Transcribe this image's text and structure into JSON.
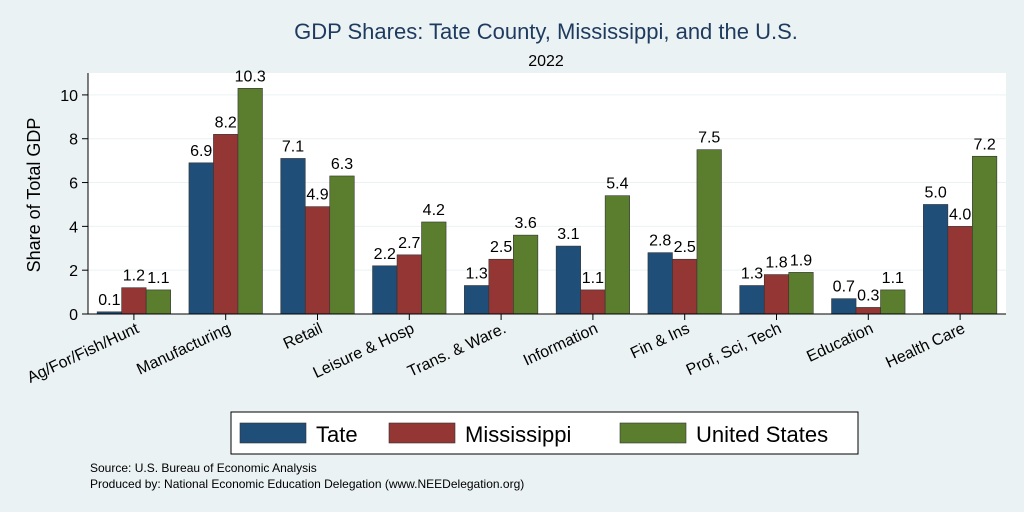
{
  "chart_data": {
    "type": "bar",
    "title": "GDP Shares: Tate County, Mississippi, and the U.S.",
    "subtitle": "2022",
    "xlabel": "",
    "ylabel": "Share of Total GDP",
    "ylim": [
      0,
      11
    ],
    "yticks": [
      0,
      2,
      4,
      6,
      8,
      10
    ],
    "grid": true,
    "legend_position": "bottom",
    "categories": [
      "Ag/For/Fish/Hunt",
      "Manufacturing",
      "Retail",
      "Leisure & Hosp",
      "Trans. & Ware.",
      "Information",
      "Fin & Ins",
      "Prof, Sci, Tech",
      "Education",
      "Health Care"
    ],
    "series": [
      {
        "name": "Tate",
        "color": "#1f4e79",
        "values": [
          0.1,
          6.9,
          7.1,
          2.2,
          1.3,
          3.1,
          2.8,
          1.3,
          0.7,
          5.0
        ]
      },
      {
        "name": "Mississippi",
        "color": "#943634",
        "values": [
          1.2,
          8.2,
          4.9,
          2.7,
          2.5,
          1.1,
          2.5,
          1.8,
          0.3,
          4.0
        ]
      },
      {
        "name": "United States",
        "color": "#5a7d2e",
        "values": [
          1.1,
          10.3,
          6.3,
          4.2,
          3.6,
          5.4,
          7.5,
          1.9,
          1.1,
          7.2
        ]
      }
    ]
  },
  "notes": {
    "source": "Source: U.S. Bureau of Economic Analysis",
    "produced_by": "Produced by: National Economic Education Delegation (www.NEEDelegation.org)"
  }
}
